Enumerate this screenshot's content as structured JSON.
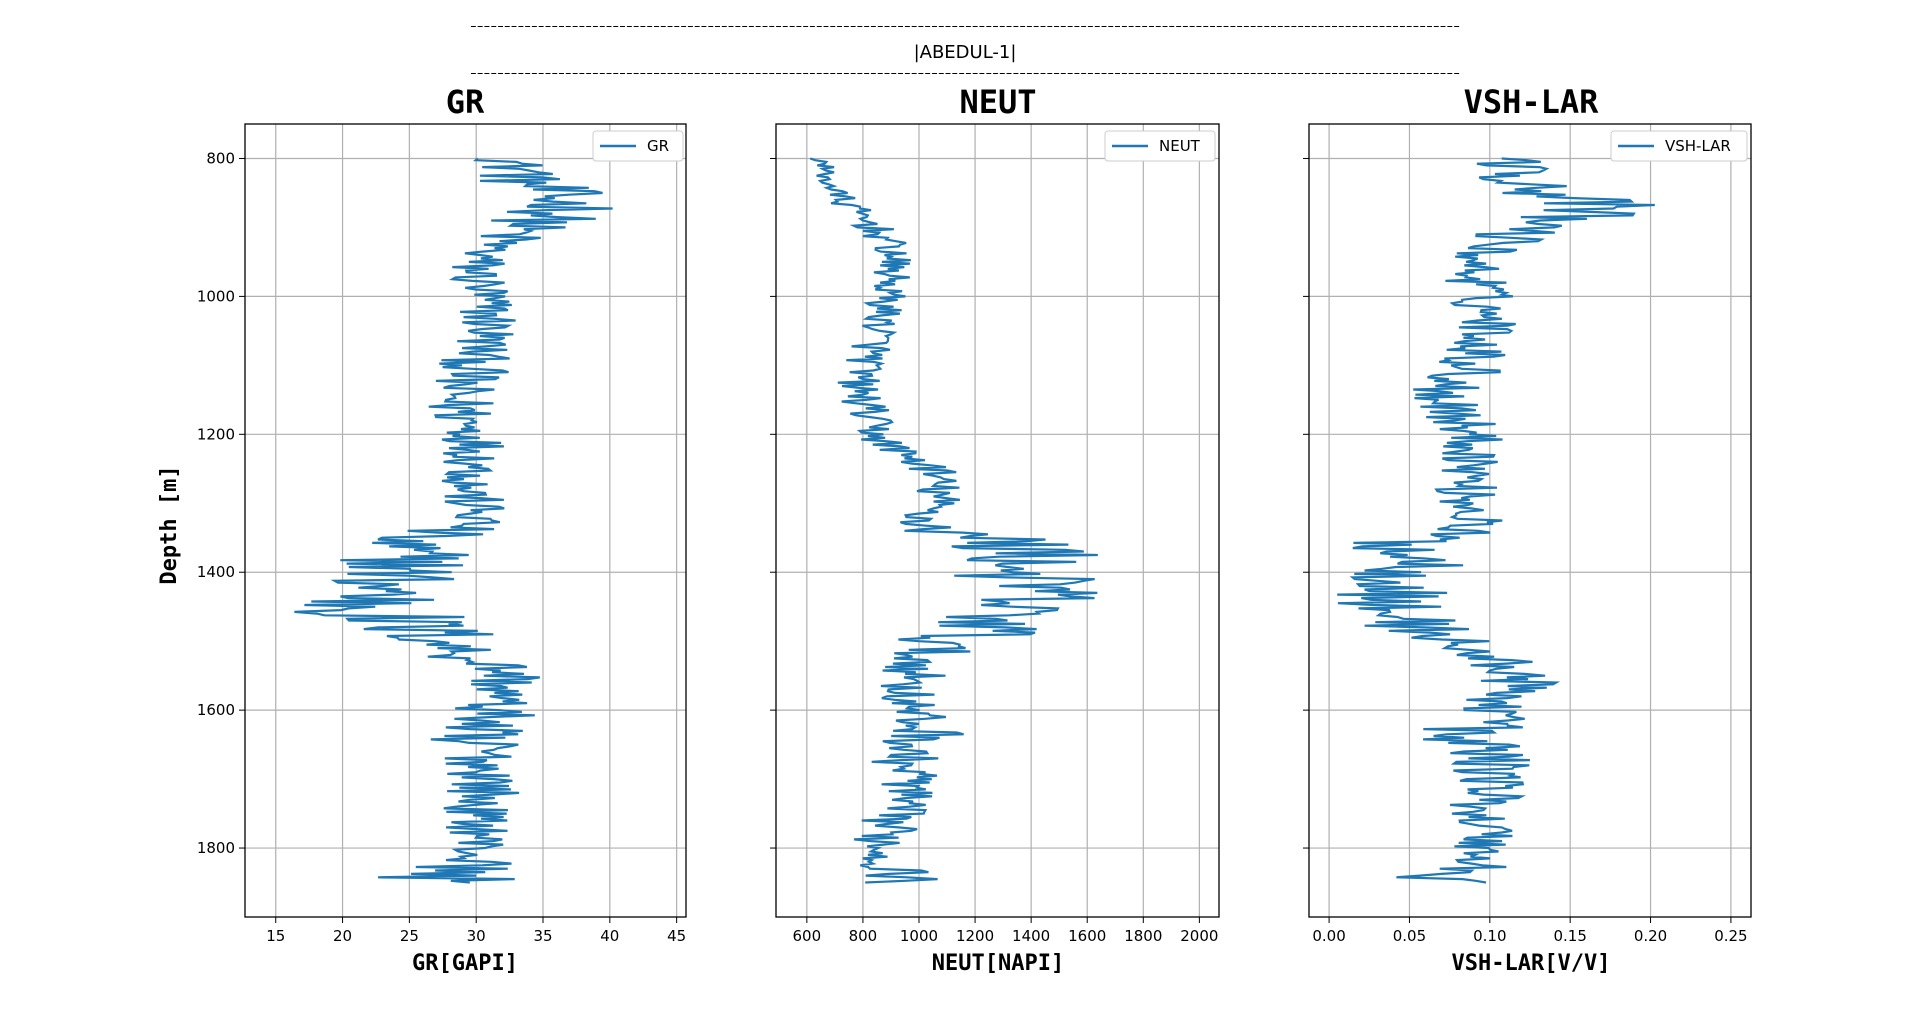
{
  "figure": {
    "header_dashes": "--------------------------------------------------------------------------------------------------------------------------------------------------",
    "well_name": "|ABEDUL-1|",
    "y_axis_label": "Depth [m]",
    "y_ticks": [
      800,
      1000,
      1200,
      1400,
      1600,
      1800
    ],
    "y_range": [
      1900,
      750
    ],
    "line_color": "#1f77b4",
    "grid": true
  },
  "chart_data": [
    {
      "type": "line",
      "title": "GR",
      "xlabel": "GR[GAPI]",
      "legend": "GR",
      "legend_position": "top-right",
      "xlim": [
        12.7,
        45.7
      ],
      "xticks": [
        15,
        20,
        25,
        30,
        35,
        40,
        45
      ],
      "series": [
        {
          "name": "GR",
          "depth": [
            800,
            810,
            820,
            830,
            840,
            850,
            860,
            870,
            880,
            890,
            900,
            910,
            920,
            930,
            940,
            950,
            970,
            990,
            1010,
            1030,
            1050,
            1070,
            1090,
            1110,
            1130,
            1150,
            1170,
            1190,
            1210,
            1230,
            1250,
            1270,
            1290,
            1310,
            1330,
            1350,
            1360,
            1370,
            1385,
            1400,
            1415,
            1430,
            1445,
            1460,
            1475,
            1490,
            1505,
            1520,
            1535,
            1550,
            1565,
            1580,
            1595,
            1610,
            1625,
            1640,
            1650,
            1660,
            1680,
            1700,
            1720,
            1740,
            1760,
            1780,
            1800,
            1815,
            1830,
            1840,
            1850
          ],
          "center": [
            33.0,
            32.5,
            34.0,
            33.0,
            34.5,
            35.5,
            36.0,
            37.5,
            36.0,
            35.0,
            33.5,
            32.5,
            32.0,
            31.0,
            30.5,
            30.0,
            30.0,
            30.5,
            30.5,
            31.0,
            31.0,
            30.5,
            30.0,
            29.5,
            28.5,
            28.5,
            29.0,
            29.5,
            30.0,
            30.0,
            30.0,
            29.5,
            29.5,
            30.0,
            30.0,
            25.0,
            23.0,
            24.0,
            25.5,
            24.0,
            23.5,
            23.0,
            22.0,
            22.5,
            24.0,
            27.0,
            28.0,
            29.0,
            31.5,
            32.5,
            32.0,
            31.5,
            31.0,
            31.5,
            30.0,
            26.5,
            31.0,
            30.5,
            30.5,
            31.0,
            30.5,
            30.0,
            30.0,
            30.5,
            30.0,
            30.0,
            29.0,
            27.0,
            29.0
          ],
          "spread": [
            3.0,
            3.0,
            3.5,
            3.5,
            4.0,
            4.0,
            4.0,
            4.5,
            4.0,
            4.0,
            3.5,
            3.0,
            3.0,
            2.5,
            2.5,
            2.5,
            2.5,
            2.5,
            2.5,
            2.5,
            2.5,
            2.5,
            2.5,
            3.0,
            3.0,
            3.0,
            3.0,
            2.5,
            2.5,
            2.5,
            2.5,
            2.5,
            2.5,
            2.5,
            2.5,
            5.0,
            6.0,
            5.5,
            5.5,
            5.5,
            6.0,
            6.5,
            7.0,
            7.0,
            6.5,
            5.0,
            4.0,
            3.5,
            3.0,
            3.0,
            3.0,
            3.0,
            3.0,
            3.0,
            4.0,
            7.5,
            3.0,
            3.0,
            3.0,
            3.0,
            3.0,
            2.5,
            2.5,
            2.5,
            2.5,
            3.0,
            4.0,
            5.0,
            6.0
          ]
        }
      ]
    },
    {
      "type": "line",
      "title": "NEUT",
      "xlabel": "NEUT[NAPI]",
      "legend": "NEUT",
      "legend_position": "top-right",
      "xlim": [
        490,
        2070
      ],
      "xticks": [
        600,
        800,
        1000,
        1200,
        1400,
        1600,
        1800,
        2000
      ],
      "series": [
        {
          "name": "NEUT",
          "depth": [
            800,
            810,
            820,
            830,
            840,
            850,
            860,
            870,
            880,
            890,
            900,
            910,
            920,
            930,
            940,
            950,
            970,
            990,
            1010,
            1030,
            1050,
            1070,
            1090,
            1110,
            1130,
            1150,
            1170,
            1190,
            1210,
            1230,
            1250,
            1270,
            1290,
            1310,
            1330,
            1350,
            1360,
            1370,
            1385,
            1400,
            1415,
            1430,
            1445,
            1460,
            1475,
            1490,
            1505,
            1520,
            1535,
            1550,
            1565,
            1580,
            1595,
            1610,
            1625,
            1640,
            1650,
            1660,
            1680,
            1700,
            1720,
            1740,
            1760,
            1780,
            1800,
            1815,
            1830,
            1840,
            1850
          ],
          "center": [
            650,
            655,
            665,
            670,
            690,
            700,
            730,
            750,
            780,
            810,
            840,
            860,
            880,
            900,
            910,
            900,
            900,
            890,
            880,
            870,
            860,
            840,
            820,
            790,
            780,
            800,
            820,
            830,
            870,
            950,
            1050,
            1060,
            1070,
            1040,
            1000,
            1200,
            1350,
            1400,
            1380,
            1350,
            1400,
            1450,
            1350,
            1300,
            1250,
            1200,
            1050,
            1000,
            1000,
            980,
            970,
            960,
            960,
            980,
            1000,
            1050,
            950,
            950,
            950,
            980,
            950,
            920,
            900,
            880,
            870,
            880,
            900,
            950,
            950
          ],
          "spread": [
            40,
            40,
            40,
            45,
            50,
            50,
            60,
            60,
            70,
            70,
            70,
            70,
            70,
            70,
            70,
            70,
            70,
            70,
            70,
            70,
            70,
            80,
            80,
            80,
            80,
            80,
            80,
            80,
            80,
            80,
            90,
            90,
            90,
            100,
            100,
            250,
            300,
            300,
            250,
            250,
            250,
            250,
            250,
            250,
            250,
            250,
            200,
            150,
            120,
            120,
            120,
            120,
            120,
            120,
            130,
            150,
            120,
            120,
            120,
            120,
            110,
            110,
            110,
            110,
            110,
            110,
            120,
            150,
            150
          ]
        }
      ]
    },
    {
      "type": "line",
      "title": "VSH-LAR",
      "xlabel": "VSH-LAR[V/V]",
      "legend": "VSH-LAR",
      "legend_position": "top-right",
      "xlim": [
        -0.0125,
        0.2625
      ],
      "xticks": [
        0.0,
        0.05,
        0.1,
        0.15,
        0.2,
        0.25
      ],
      "tick_decimals": 2,
      "series": [
        {
          "name": "VSH-LAR",
          "depth": [
            800,
            810,
            820,
            830,
            840,
            850,
            860,
            870,
            880,
            890,
            900,
            910,
            920,
            930,
            940,
            950,
            970,
            990,
            1010,
            1030,
            1050,
            1070,
            1090,
            1110,
            1130,
            1150,
            1170,
            1190,
            1210,
            1230,
            1250,
            1270,
            1290,
            1310,
            1330,
            1350,
            1360,
            1370,
            1385,
            1400,
            1415,
            1430,
            1445,
            1460,
            1475,
            1490,
            1505,
            1520,
            1535,
            1550,
            1565,
            1580,
            1595,
            1610,
            1625,
            1640,
            1650,
            1660,
            1680,
            1700,
            1720,
            1740,
            1760,
            1780,
            1800,
            1815,
            1830,
            1840,
            1850
          ],
          "center": [
            0.115,
            0.11,
            0.125,
            0.115,
            0.13,
            0.14,
            0.15,
            0.165,
            0.15,
            0.14,
            0.125,
            0.115,
            0.11,
            0.1,
            0.095,
            0.09,
            0.09,
            0.095,
            0.095,
            0.1,
            0.1,
            0.095,
            0.09,
            0.085,
            0.075,
            0.075,
            0.08,
            0.085,
            0.09,
            0.09,
            0.09,
            0.085,
            0.085,
            0.09,
            0.09,
            0.06,
            0.045,
            0.05,
            0.06,
            0.05,
            0.045,
            0.04,
            0.035,
            0.04,
            0.05,
            0.07,
            0.08,
            0.09,
            0.11,
            0.12,
            0.115,
            0.11,
            0.105,
            0.11,
            0.095,
            0.06,
            0.1,
            0.1,
            0.1,
            0.105,
            0.1,
            0.095,
            0.095,
            0.1,
            0.095,
            0.095,
            0.085,
            0.07,
            0.085
          ],
          "spread": [
            0.02,
            0.02,
            0.025,
            0.025,
            0.03,
            0.035,
            0.04,
            0.045,
            0.045,
            0.04,
            0.03,
            0.025,
            0.025,
            0.02,
            0.02,
            0.02,
            0.02,
            0.02,
            0.02,
            0.02,
            0.02,
            0.02,
            0.02,
            0.025,
            0.025,
            0.025,
            0.025,
            0.02,
            0.02,
            0.02,
            0.02,
            0.02,
            0.02,
            0.02,
            0.02,
            0.035,
            0.04,
            0.035,
            0.035,
            0.035,
            0.035,
            0.035,
            0.035,
            0.035,
            0.035,
            0.03,
            0.025,
            0.025,
            0.025,
            0.025,
            0.025,
            0.025,
            0.025,
            0.025,
            0.03,
            0.05,
            0.025,
            0.025,
            0.025,
            0.025,
            0.025,
            0.02,
            0.02,
            0.02,
            0.02,
            0.025,
            0.03,
            0.035,
            0.035
          ]
        }
      ]
    }
  ]
}
